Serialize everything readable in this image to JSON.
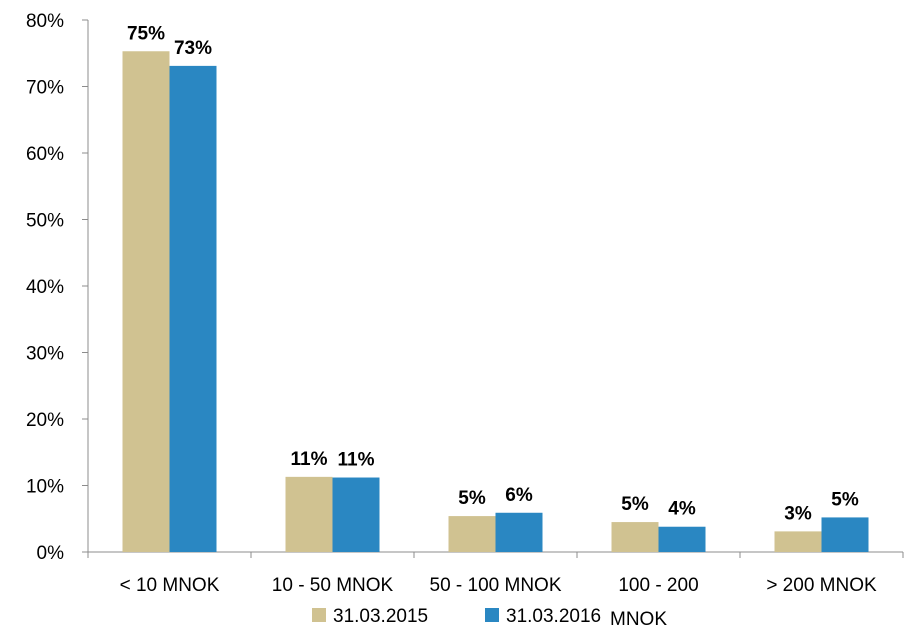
{
  "chart_data": {
    "type": "bar",
    "categories": [
      "< 10 MNOK",
      "10 - 50 MNOK",
      "50 - 100 MNOK",
      "100 - 200",
      "> 200 MNOK"
    ],
    "series": [
      {
        "name": "31.03.2015",
        "values": [
          0.753,
          0.113,
          0.054,
          0.045,
          0.031
        ],
        "labels": [
          "75%",
          "11%",
          "5%",
          "5%",
          "3%"
        ],
        "color": "#d0c291"
      },
      {
        "name": "31.03.2016",
        "values": [
          0.731,
          0.112,
          0.059,
          0.038,
          0.052
        ],
        "labels": [
          "73%",
          "11%",
          "6%",
          "4%",
          "5%"
        ],
        "color": "#2a87c2"
      }
    ],
    "yticks": [
      "0%",
      "10%",
      "20%",
      "30%",
      "40%",
      "50%",
      "60%",
      "70%",
      "80%"
    ],
    "ylim": [
      0,
      0.8
    ],
    "legend_suffix": "MNOK",
    "legend_position": "bottom",
    "grid": false,
    "title": "",
    "xlabel": "",
    "ylabel": ""
  }
}
